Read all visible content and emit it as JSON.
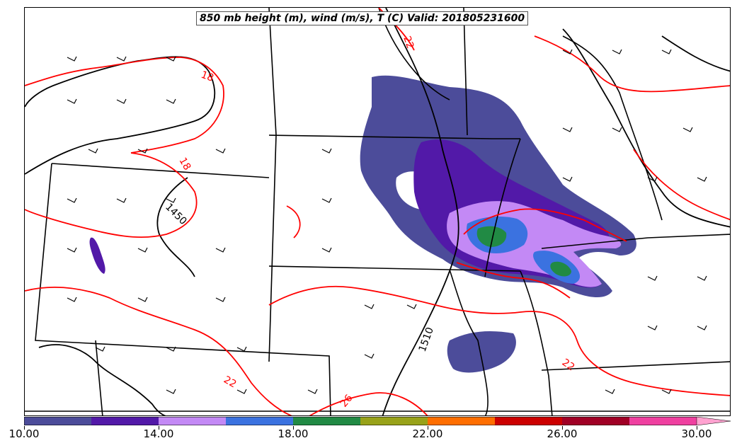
{
  "title": "850 mb height (m), wind (m/s), T (C) Valid: 201805231600",
  "contour_labels": {
    "temperature": [
      "18",
      "18",
      "22",
      "22",
      "22",
      "26"
    ],
    "height": [
      "1450",
      "1510"
    ]
  },
  "colors": {
    "temperature_contour": "#ff0000",
    "height_contour": "#000000",
    "state_border": "#000000"
  },
  "colorbar": {
    "ticks": [
      "10.00",
      "14.00",
      "18.00",
      "22.00",
      "26.00",
      "30.00"
    ],
    "segments": [
      "#4c4c9a",
      "#5219a8",
      "#c389f5",
      "#3b72e0",
      "#218a44",
      "#98a219",
      "#ff6e00",
      "#cc0000",
      "#a00025",
      "#ef40a0"
    ],
    "extend_color": "#ffa2d0"
  }
}
